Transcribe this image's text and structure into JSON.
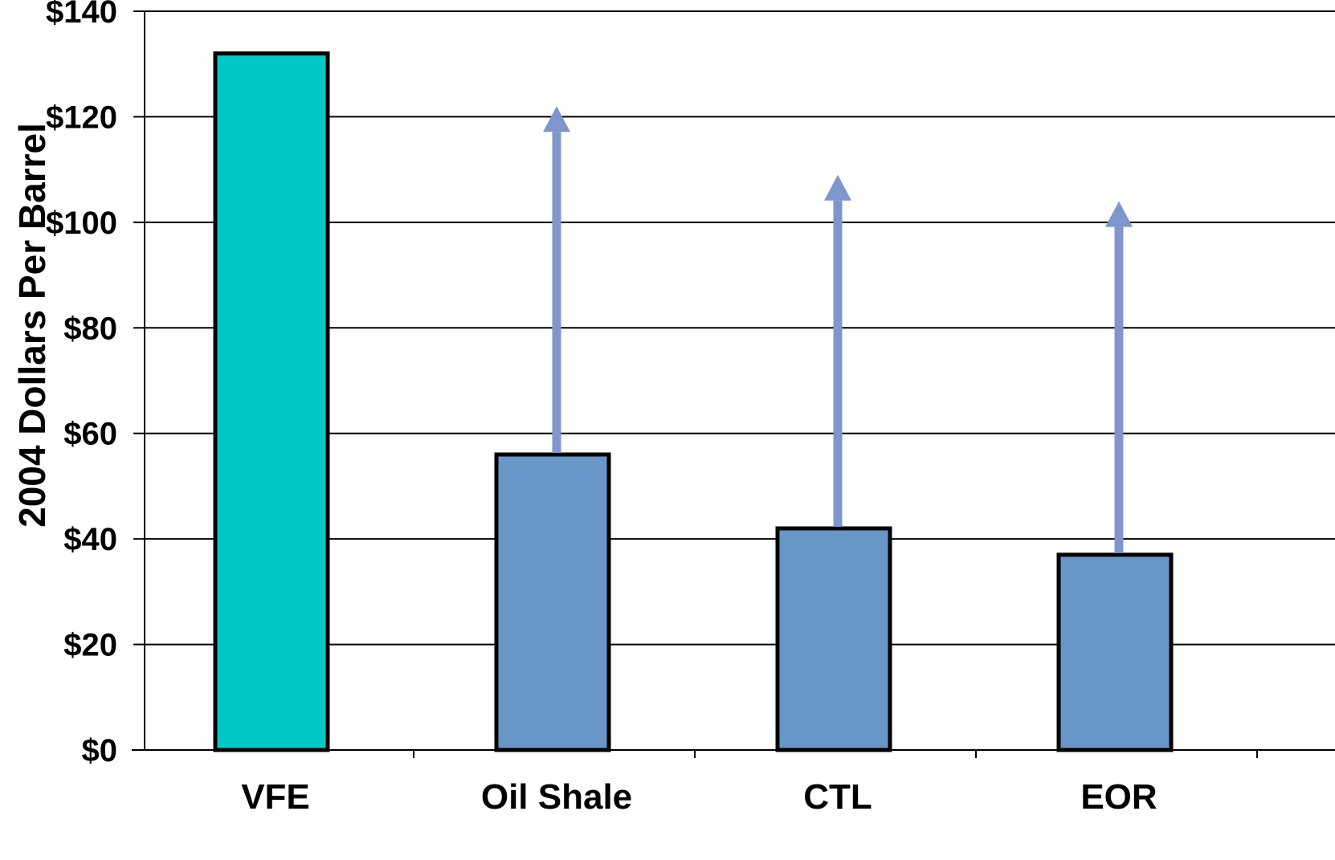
{
  "chart_data": {
    "type": "bar",
    "title": "",
    "xlabel": "",
    "ylabel": "2004 Dollars Per Barrel",
    "ylim": [
      0,
      140
    ],
    "yticks": [
      0,
      20,
      40,
      60,
      80,
      100,
      120,
      140
    ],
    "ytick_labels": [
      "$0",
      "$20",
      "$40",
      "$60",
      "$80",
      "$100",
      "$120",
      "$140"
    ],
    "grid": true,
    "categories": [
      "VFE",
      "Oil Shale",
      "CTL",
      "EOR"
    ],
    "values": [
      132,
      56,
      42,
      37
    ],
    "range_upper": [
      null,
      122,
      109,
      104
    ],
    "bar_colors": [
      "#00c8c8",
      "#6896c8",
      "#6896c8",
      "#6896c8"
    ],
    "arrow_color": "#7f96cc"
  }
}
